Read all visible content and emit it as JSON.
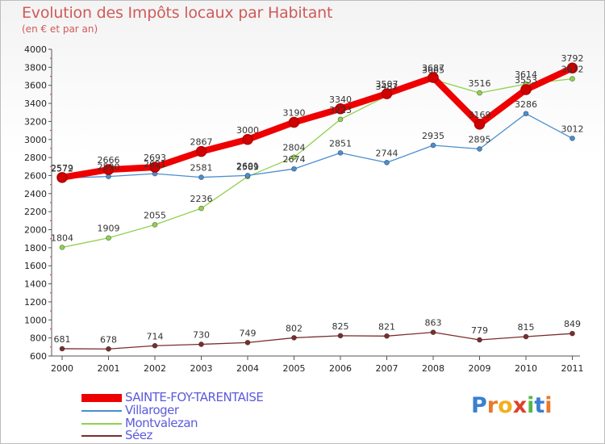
{
  "header": {
    "title": "Evolution des Impôts locaux par Habitant",
    "subtitle": "(en € et par an)"
  },
  "logo": {
    "text": "Proxiti",
    "letters": [
      {
        "ch": "P",
        "color": "#3a7fd0"
      },
      {
        "ch": "r",
        "color": "#e8792a"
      },
      {
        "ch": "o",
        "color": "#f0b020"
      },
      {
        "ch": "x",
        "color": "#e0402a"
      },
      {
        "ch": "i",
        "color": "#58b848"
      },
      {
        "ch": "t",
        "color": "#3a7fd0"
      },
      {
        "ch": "i",
        "color": "#e8792a"
      }
    ]
  },
  "chart_data": {
    "type": "line",
    "title": "Evolution des Impôts locaux par Habitant",
    "subtitle": "(en € et par an)",
    "xlabel": "",
    "ylabel": "",
    "ylim": [
      600,
      4000
    ],
    "y_ticks": [
      600,
      800,
      1000,
      1200,
      1400,
      1600,
      1800,
      2000,
      2200,
      2400,
      2600,
      2800,
      3000,
      3200,
      3400,
      3600,
      3800,
      4000
    ],
    "categories": [
      "2000",
      "2001",
      "2002",
      "2003",
      "2004",
      "2005",
      "2006",
      "2007",
      "2008",
      "2009",
      "2010",
      "2011"
    ],
    "grid": false,
    "legend_position": "bottom-left",
    "series": [
      {
        "name": "SAINTE-FOY-TARENTAISE",
        "color": "#ee0000",
        "values": [
          2579,
          2666,
          2693,
          2867,
          3000,
          3190,
          3340,
          3507,
          3687,
          3169,
          3553,
          3792
        ],
        "labels": [
          "2579",
          "2666",
          "2693",
          "2867",
          "3000",
          "3190",
          "3340",
          "3507",
          "3687",
          "3169",
          "3553",
          "3792"
        ]
      },
      {
        "name": "Villaroger",
        "color": "#4a8ed0",
        "values": [
          2572,
          2590,
          2621,
          2581,
          2601,
          2674,
          2851,
          2744,
          2935,
          2895,
          3286,
          3012
        ],
        "labels": [
          "2572",
          "2590",
          "2621",
          "2581",
          "2601",
          "2674",
          "2851",
          "2744",
          "2935",
          "2895",
          "3286",
          "3012"
        ]
      },
      {
        "name": "Montvalezan",
        "color": "#92d050",
        "values": [
          1804,
          1909,
          2055,
          2236,
          2589,
          2804,
          3223,
          3482,
          3665,
          3516,
          3614,
          3672
        ],
        "labels": [
          "1804",
          "1909",
          "2055",
          "2236",
          "2589",
          "2804",
          "3223",
          "3482",
          "3665",
          "3516",
          "3614",
          "3672"
        ]
      },
      {
        "name": "Séez",
        "color": "#7a2e2e",
        "values": [
          681,
          678,
          714,
          730,
          749,
          802,
          825,
          821,
          863,
          779,
          815,
          849
        ],
        "labels": [
          "681",
          "678",
          "714",
          "730",
          "749",
          "802",
          "825",
          "821",
          "863",
          "779",
          "815",
          "849"
        ]
      }
    ]
  }
}
